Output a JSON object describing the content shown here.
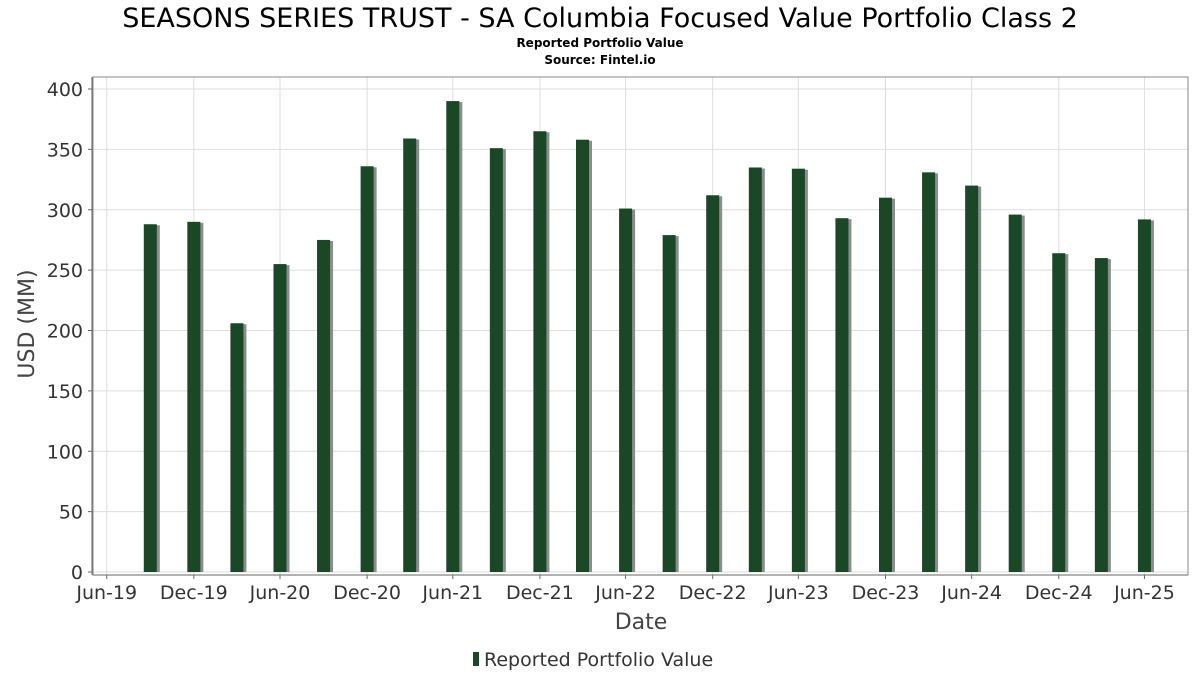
{
  "chart_data": {
    "type": "bar",
    "title": "SEASONS SERIES TRUST - SA Columbia Focused Value Portfolio Class 2",
    "subtitle": "Reported Portfolio Value",
    "source": "Source: Fintel.io",
    "xlabel": "Date",
    "ylabel": "USD (MM)",
    "ylim": [
      0,
      400
    ],
    "yticks": [
      0,
      50,
      100,
      150,
      200,
      250,
      300,
      350,
      400
    ],
    "xlim": [
      "2019-06-01",
      "2025-09-30"
    ],
    "xticks": [
      {
        "label": "Jun-19",
        "date": "2019-06-30"
      },
      {
        "label": "Dec-19",
        "date": "2019-12-31"
      },
      {
        "label": "Jun-20",
        "date": "2020-06-30"
      },
      {
        "label": "Dec-20",
        "date": "2020-12-31"
      },
      {
        "label": "Jun-21",
        "date": "2021-06-30"
      },
      {
        "label": "Dec-21",
        "date": "2021-12-31"
      },
      {
        "label": "Jun-22",
        "date": "2022-06-30"
      },
      {
        "label": "Dec-22",
        "date": "2022-12-31"
      },
      {
        "label": "Jun-23",
        "date": "2023-06-30"
      },
      {
        "label": "Dec-23",
        "date": "2023-12-31"
      },
      {
        "label": "Jun-24",
        "date": "2024-06-30"
      },
      {
        "label": "Dec-24",
        "date": "2024-12-31"
      },
      {
        "label": "Jun-25",
        "date": "2025-06-30"
      }
    ],
    "grid": true,
    "legend_position": "bottom",
    "series": [
      {
        "name": "Reported Portfolio Value",
        "color": "#1a4726",
        "shadow_color": "#8c8c8c",
        "x": [
          "2019-09-30",
          "2019-12-31",
          "2020-03-31",
          "2020-06-30",
          "2020-09-30",
          "2020-12-31",
          "2021-03-31",
          "2021-06-30",
          "2021-09-30",
          "2021-12-31",
          "2022-03-31",
          "2022-06-30",
          "2022-09-30",
          "2022-12-31",
          "2023-03-31",
          "2023-06-30",
          "2023-09-30",
          "2023-12-31",
          "2024-03-31",
          "2024-06-30",
          "2024-09-30",
          "2024-12-31",
          "2025-03-31",
          "2025-06-30"
        ],
        "values": [
          288,
          290,
          206,
          255,
          275,
          336,
          359,
          390,
          351,
          365,
          358,
          301,
          279,
          312,
          335,
          334,
          293,
          310,
          331,
          320,
          296,
          264,
          260,
          292
        ]
      }
    ]
  }
}
